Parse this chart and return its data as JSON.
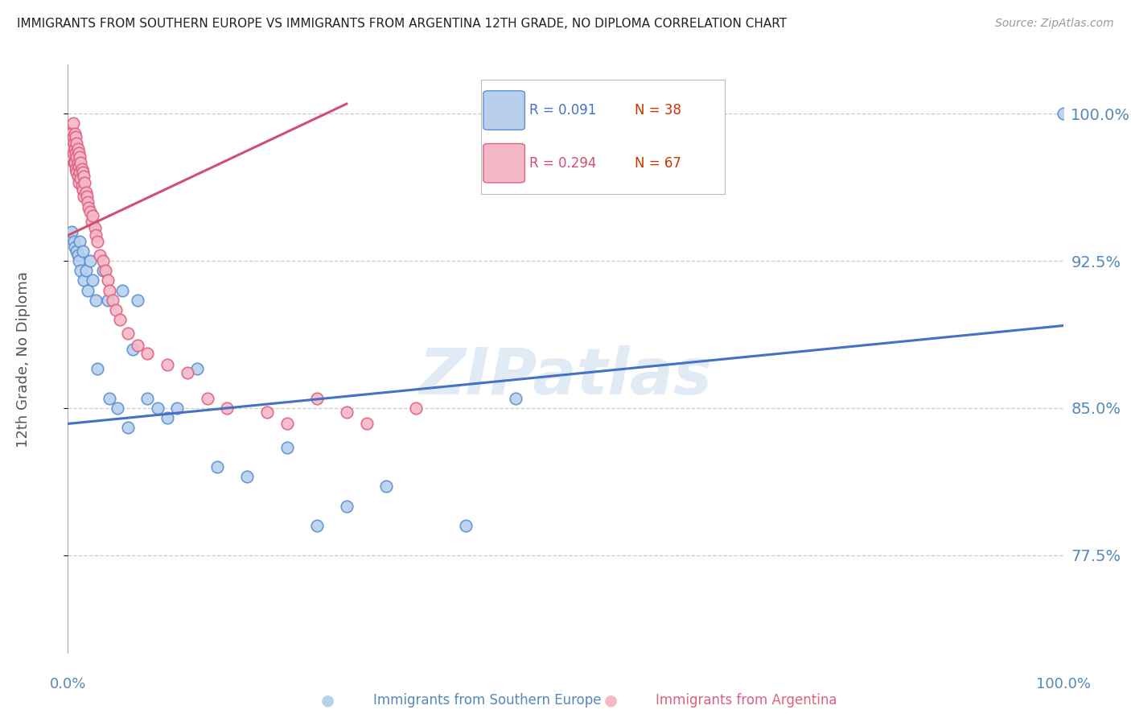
{
  "title": "IMMIGRANTS FROM SOUTHERN EUROPE VS IMMIGRANTS FROM ARGENTINA 12TH GRADE, NO DIPLOMA CORRELATION CHART",
  "source": "Source: ZipAtlas.com",
  "ylabel": "12th Grade, No Diploma",
  "blue_label": "Immigrants from Southern Europe",
  "pink_label": "Immigrants from Argentina",
  "blue_R": 0.091,
  "blue_N": 38,
  "pink_R": 0.294,
  "pink_N": 67,
  "xlim": [
    0.0,
    1.0
  ],
  "ylim": [
    0.725,
    1.025
  ],
  "yticks": [
    0.775,
    0.85,
    0.925,
    1.0
  ],
  "ytick_labels": [
    "77.5%",
    "85.0%",
    "92.5%",
    "100.0%"
  ],
  "xticks": [
    0.0,
    0.2,
    0.4,
    0.6,
    0.8,
    1.0
  ],
  "xtick_labels": [
    "0.0%",
    "",
    "",
    "",
    "",
    "100.0%"
  ],
  "watermark": "ZIPatlas",
  "blue_fill": "#b8d0ec",
  "blue_edge": "#5b8fd4",
  "pink_fill": "#f5b8c8",
  "pink_edge": "#e06080",
  "blue_line": "#4472c4",
  "pink_line": "#d05070",
  "title_color": "#222222",
  "axis_label_color": "#5588bb",
  "grid_color": "#cccccc",
  "blue_points_x": [
    0.004,
    0.006,
    0.007,
    0.009,
    0.01,
    0.011,
    0.012,
    0.013,
    0.015,
    0.016,
    0.018,
    0.02,
    0.022,
    0.025,
    0.028,
    0.03,
    0.035,
    0.04,
    0.042,
    0.05,
    0.055,
    0.06,
    0.065,
    0.07,
    0.08,
    0.09,
    0.1,
    0.11,
    0.13,
    0.15,
    0.18,
    0.22,
    0.25,
    0.28,
    0.32,
    0.4,
    0.45,
    1.0
  ],
  "blue_points_y": [
    0.94,
    0.935,
    0.932,
    0.93,
    0.928,
    0.925,
    0.935,
    0.92,
    0.93,
    0.915,
    0.92,
    0.91,
    0.925,
    0.915,
    0.905,
    0.87,
    0.92,
    0.905,
    0.855,
    0.85,
    0.91,
    0.84,
    0.88,
    0.905,
    0.855,
    0.85,
    0.845,
    0.85,
    0.87,
    0.82,
    0.815,
    0.83,
    0.79,
    0.8,
    0.81,
    0.79,
    0.855,
    1.0
  ],
  "pink_points_x": [
    0.002,
    0.003,
    0.003,
    0.004,
    0.004,
    0.005,
    0.005,
    0.005,
    0.006,
    0.006,
    0.007,
    0.007,
    0.007,
    0.008,
    0.008,
    0.008,
    0.009,
    0.009,
    0.009,
    0.01,
    0.01,
    0.01,
    0.011,
    0.011,
    0.011,
    0.012,
    0.012,
    0.013,
    0.013,
    0.014,
    0.014,
    0.015,
    0.015,
    0.016,
    0.016,
    0.017,
    0.018,
    0.019,
    0.02,
    0.021,
    0.022,
    0.024,
    0.025,
    0.027,
    0.028,
    0.03,
    0.032,
    0.035,
    0.038,
    0.04,
    0.042,
    0.045,
    0.048,
    0.052,
    0.06,
    0.07,
    0.08,
    0.1,
    0.12,
    0.14,
    0.16,
    0.2,
    0.22,
    0.25,
    0.28,
    0.3,
    0.35
  ],
  "pink_points_y": [
    0.99,
    0.985,
    0.982,
    0.99,
    0.978,
    0.995,
    0.988,
    0.98,
    0.985,
    0.975,
    0.99,
    0.982,
    0.975,
    0.988,
    0.98,
    0.972,
    0.985,
    0.978,
    0.97,
    0.982,
    0.975,
    0.968,
    0.98,
    0.973,
    0.965,
    0.978,
    0.97,
    0.975,
    0.967,
    0.972,
    0.963,
    0.97,
    0.961,
    0.968,
    0.958,
    0.965,
    0.96,
    0.958,
    0.955,
    0.952,
    0.95,
    0.945,
    0.948,
    0.942,
    0.938,
    0.935,
    0.928,
    0.925,
    0.92,
    0.915,
    0.91,
    0.905,
    0.9,
    0.895,
    0.888,
    0.882,
    0.878,
    0.872,
    0.868,
    0.855,
    0.85,
    0.848,
    0.842,
    0.855,
    0.848,
    0.842,
    0.85
  ],
  "blue_line_x": [
    0.0,
    1.0
  ],
  "blue_line_y": [
    0.842,
    0.892
  ],
  "pink_line_x": [
    0.0,
    0.28
  ],
  "pink_line_y": [
    0.938,
    1.005
  ]
}
